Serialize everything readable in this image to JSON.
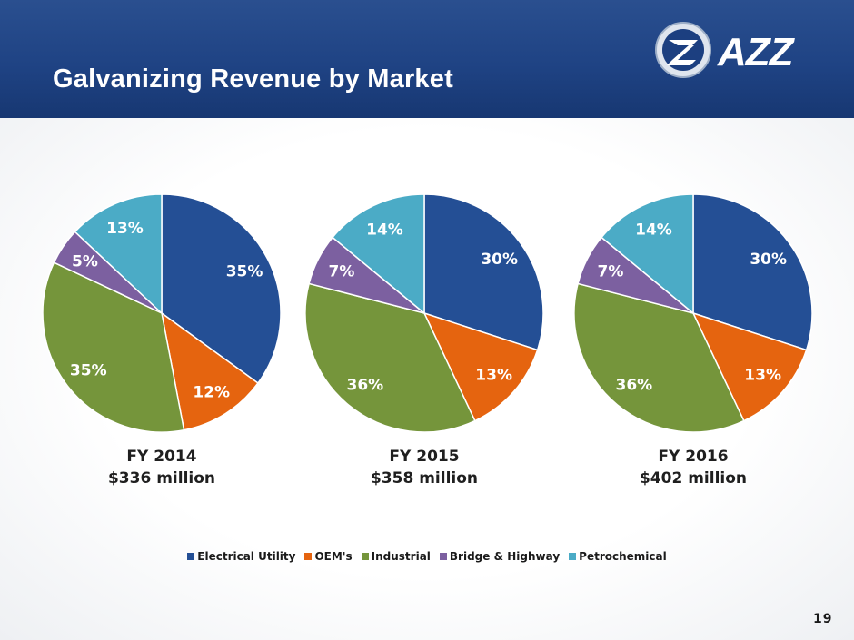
{
  "slide": {
    "title": "Galvanizing Revenue by Market",
    "logo_text": "AZZ",
    "page_number": "19"
  },
  "colors": {
    "Electrical Utility": "#244f95",
    "OEM's": "#e5640f",
    "Industrial": "#75953b",
    "Bridge & Highway": "#7c60a0",
    "Petrochemical": "#4babc6"
  },
  "legend": [
    "Electrical Utility",
    "OEM's",
    "Industrial",
    "Bridge & Highway",
    "Petrochemical"
  ],
  "chart_data": [
    {
      "type": "pie",
      "title": "FY 2014",
      "subtitle": "$336 million",
      "categories": [
        "Electrical Utility",
        "OEM's",
        "Industrial",
        "Bridge & Highway",
        "Petrochemical"
      ],
      "values": [
        35,
        12,
        35,
        5,
        13
      ],
      "labels": [
        "35%",
        "12%",
        "35%",
        "5%",
        "13%"
      ]
    },
    {
      "type": "pie",
      "title": "FY 2015",
      "subtitle": "$358 million",
      "categories": [
        "Electrical Utility",
        "OEM's",
        "Industrial",
        "Bridge & Highway",
        "Petrochemical"
      ],
      "values": [
        30,
        13,
        36,
        7,
        14
      ],
      "labels": [
        "30%",
        "13%",
        "36%",
        "7%",
        "14%"
      ]
    },
    {
      "type": "pie",
      "title": "FY 2016",
      "subtitle": "$402 million",
      "categories": [
        "Electrical Utility",
        "OEM's",
        "Industrial",
        "Bridge & Highway",
        "Petrochemical"
      ],
      "values": [
        30,
        13,
        36,
        7,
        14
      ],
      "labels": [
        "30%",
        "13%",
        "36%",
        "7%",
        "14%"
      ]
    }
  ]
}
